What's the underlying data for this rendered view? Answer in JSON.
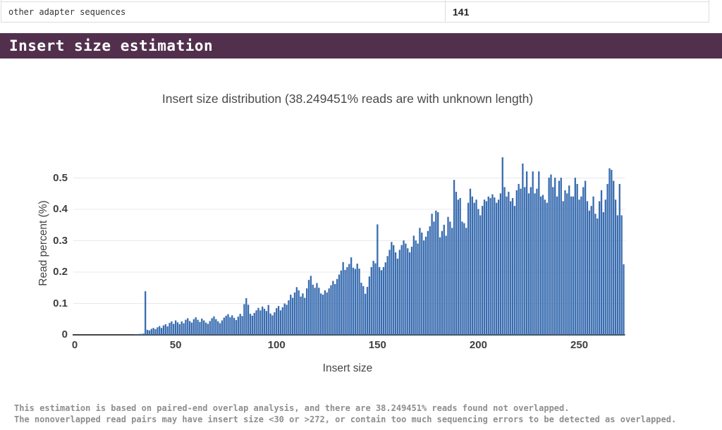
{
  "table": {
    "rows": [
      {
        "label": "other adapter sequences",
        "value": "141"
      }
    ]
  },
  "section": {
    "title": "Insert size estimation"
  },
  "notes": {
    "line1": "This estimation is based on paired-end overlap analysis, and there are 38.249451% reads found not overlapped.",
    "line2": "The nonoverlapped read pairs may have insert size <30 or >272, or contain too much sequencing errors to be detected as overlapped."
  },
  "chart_data": {
    "type": "bar",
    "title": "Insert size distribution (38.249451% reads are with unknown length)",
    "xlabel": "Insert size",
    "ylabel": "Read percent (%)",
    "x_start": 30,
    "x_step": 1,
    "xlim": [
      0,
      272
    ],
    "ylim": [
      0,
      0.585
    ],
    "x_ticks": [
      0,
      50,
      100,
      150,
      200,
      250
    ],
    "y_ticks": [
      0,
      0.1,
      0.2,
      0.3,
      0.4,
      0.5
    ],
    "bar_color": "#386CB0",
    "grid": "horizontal",
    "grid_color": "#e8e8e8",
    "zeroline_color": "#444444",
    "values": [
      0.002,
      0.002,
      0.003,
      0.003,
      0.004,
      0.139,
      0.016,
      0.014,
      0.019,
      0.022,
      0.018,
      0.024,
      0.028,
      0.022,
      0.03,
      0.034,
      0.027,
      0.038,
      0.043,
      0.035,
      0.046,
      0.04,
      0.034,
      0.043,
      0.037,
      0.048,
      0.053,
      0.044,
      0.039,
      0.05,
      0.056,
      0.048,
      0.041,
      0.052,
      0.046,
      0.039,
      0.035,
      0.044,
      0.053,
      0.059,
      0.05,
      0.043,
      0.037,
      0.046,
      0.055,
      0.061,
      0.066,
      0.056,
      0.062,
      0.054,
      0.047,
      0.058,
      0.067,
      0.06,
      0.098,
      0.117,
      0.096,
      0.067,
      0.061,
      0.07,
      0.078,
      0.086,
      0.078,
      0.09,
      0.083,
      0.076,
      0.095,
      0.068,
      0.062,
      0.072,
      0.085,
      0.092,
      0.078,
      0.088,
      0.1,
      0.096,
      0.11,
      0.128,
      0.118,
      0.135,
      0.152,
      0.142,
      0.122,
      0.132,
      0.118,
      0.148,
      0.175,
      0.188,
      0.16,
      0.15,
      0.165,
      0.15,
      0.132,
      0.128,
      0.142,
      0.135,
      0.148,
      0.158,
      0.172,
      0.162,
      0.178,
      0.192,
      0.205,
      0.232,
      0.207,
      0.216,
      0.226,
      0.247,
      0.214,
      0.21,
      0.227,
      0.211,
      0.166,
      0.155,
      0.131,
      0.153,
      0.186,
      0.216,
      0.236,
      0.228,
      0.352,
      0.216,
      0.206,
      0.216,
      0.231,
      0.251,
      0.271,
      0.296,
      0.286,
      0.263,
      0.243,
      0.271,
      0.286,
      0.301,
      0.291,
      0.276,
      0.263,
      0.281,
      0.316,
      0.301,
      0.291,
      0.341,
      0.326,
      0.301,
      0.313,
      0.331,
      0.346,
      0.386,
      0.361,
      0.396,
      0.391,
      0.311,
      0.331,
      0.351,
      0.316,
      0.376,
      0.361,
      0.341,
      0.494,
      0.456,
      0.431,
      0.436,
      0.361,
      0.356,
      0.341,
      0.421,
      0.466,
      0.441,
      0.421,
      0.431,
      0.401,
      0.381,
      0.411,
      0.431,
      0.426,
      0.441,
      0.436,
      0.448,
      0.438,
      0.421,
      0.431,
      0.451,
      0.566,
      0.471,
      0.441,
      0.456,
      0.426,
      0.436,
      0.411,
      0.461,
      0.481,
      0.466,
      0.546,
      0.471,
      0.521,
      0.451,
      0.471,
      0.521,
      0.451,
      0.466,
      0.521,
      0.441,
      0.446,
      0.431,
      0.421,
      0.501,
      0.511,
      0.471,
      0.501,
      0.441,
      0.491,
      0.501,
      0.426,
      0.461,
      0.451,
      0.476,
      0.441,
      0.441,
      0.501,
      0.481,
      0.431,
      0.441,
      0.471,
      0.491,
      0.426,
      0.396,
      0.411,
      0.441,
      0.386,
      0.371,
      0.426,
      0.461,
      0.391,
      0.431,
      0.481,
      0.531,
      0.526,
      0.491,
      0.431,
      0.381,
      0.481,
      0.381,
      0.225
    ]
  }
}
